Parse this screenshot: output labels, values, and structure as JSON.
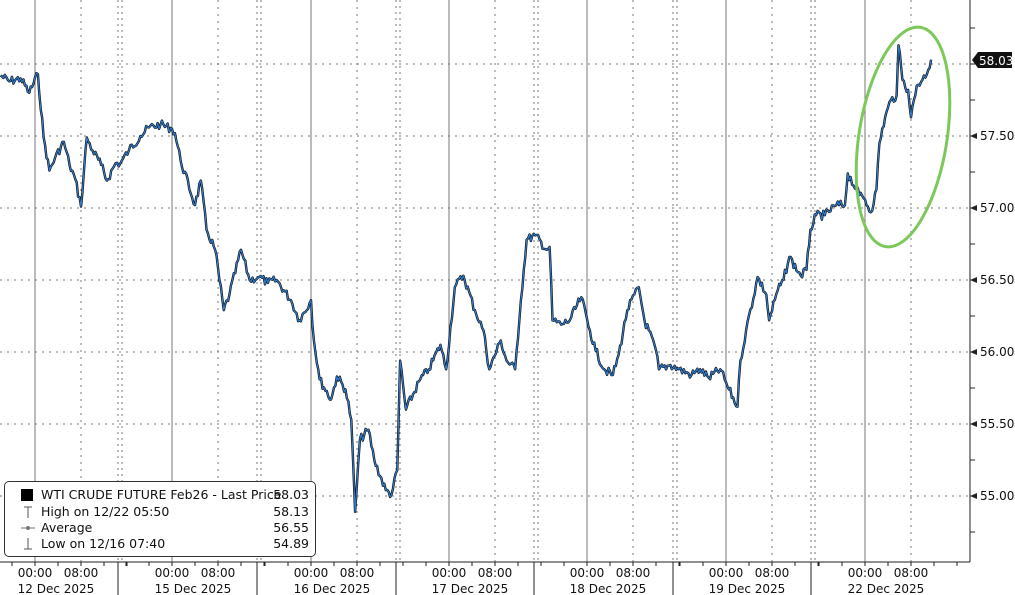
{
  "chart_data": {
    "type": "line",
    "title": "",
    "xlabel": "",
    "ylabel": "",
    "ylim": [
      54.6,
      58.45
    ],
    "y_ticks": [
      "57.50",
      "57.00",
      "56.50",
      "56.00",
      "55.50",
      "55.00"
    ],
    "y_tick_values": [
      57.5,
      57.0,
      56.5,
      56.0,
      55.5,
      55.0
    ],
    "y_gridlines": [
      58.0,
      57.5,
      57.0,
      56.5,
      56.0,
      55.5,
      55.0
    ],
    "grid": true,
    "last_price_tag": "58.03",
    "colors": {
      "price_line": "#111111",
      "price_fill": "#2f7fd6",
      "highlight_ellipse": "#7cc85a",
      "last_tag_bg": "#111111"
    },
    "sessions": [
      {
        "date": "12 Dec 2025",
        "time_labels": [
          "00:00",
          "08:00"
        ],
        "points_hour_price": [
          [
            -6,
            57.92
          ],
          [
            -4.5,
            57.88
          ],
          [
            -2.5,
            57.9
          ],
          [
            -1,
            57.8
          ],
          [
            0.5,
            57.93
          ],
          [
            1.5,
            57.49
          ],
          [
            2.5,
            57.26
          ],
          [
            3.5,
            57.35
          ],
          [
            5,
            57.46
          ],
          [
            6,
            57.3
          ],
          [
            7,
            57.2
          ],
          [
            8,
            57.01
          ],
          [
            9,
            57.49
          ],
          [
            10,
            57.4
          ],
          [
            11.5,
            57.3
          ],
          [
            12.5,
            57.19
          ],
          [
            14,
            57.31
          ]
        ]
      },
      {
        "date": "15 Dec 2025",
        "time_labels": [
          "00:00",
          "08:00"
        ],
        "points_hour_price": [
          [
            -9,
            57.31
          ],
          [
            -7.5,
            57.4
          ],
          [
            -5.5,
            57.5
          ],
          [
            -4,
            57.56
          ],
          [
            -2,
            57.58
          ],
          [
            0,
            57.55
          ],
          [
            0.5,
            57.52
          ],
          [
            1.5,
            57.33
          ],
          [
            4,
            57.02
          ],
          [
            5,
            57.19
          ],
          [
            6,
            56.85
          ],
          [
            7.5,
            56.71
          ],
          [
            9,
            56.29
          ],
          [
            10,
            56.4
          ],
          [
            12,
            56.71
          ],
          [
            13.5,
            56.5
          ],
          [
            15,
            56.52
          ]
        ]
      },
      {
        "date": "16 Dec 2025",
        "time_labels": [
          "00:00",
          "08:00"
        ],
        "points_hour_price": [
          [
            -9,
            56.52
          ],
          [
            -7.5,
            56.48
          ],
          [
            -6,
            56.5
          ],
          [
            -3.5,
            56.36
          ],
          [
            -2,
            56.22
          ],
          [
            0,
            56.36
          ],
          [
            0.5,
            56.08
          ],
          [
            1.5,
            55.81
          ],
          [
            3.5,
            55.67
          ],
          [
            4.5,
            55.83
          ],
          [
            6,
            55.74
          ],
          [
            7,
            55.53
          ],
          [
            7.67,
            54.89
          ],
          [
            8.5,
            55.39
          ],
          [
            10,
            55.46
          ],
          [
            11,
            55.25
          ],
          [
            13,
            55.04
          ],
          [
            14,
            55.01
          ],
          [
            15,
            55.18
          ]
        ]
      },
      {
        "date": "17 Dec 2025",
        "time_labels": [
          "00:00",
          "08:00"
        ],
        "points_hour_price": [
          [
            -8.5,
            55.94
          ],
          [
            -7.5,
            55.6
          ],
          [
            -5,
            55.81
          ],
          [
            -3.5,
            55.88
          ],
          [
            -1.5,
            56.05
          ],
          [
            -0.5,
            55.88
          ],
          [
            1,
            56.45
          ],
          [
            2.5,
            56.53
          ],
          [
            4.5,
            56.29
          ],
          [
            6,
            56.15
          ],
          [
            7,
            55.88
          ],
          [
            9,
            56.08
          ],
          [
            10,
            55.94
          ],
          [
            11.5,
            55.88
          ],
          [
            12.5,
            56.36
          ]
        ]
      },
      {
        "date": "18 Dec 2025",
        "time_labels": [
          "00:00",
          "08:00"
        ],
        "points_hour_price": [
          [
            -10.5,
            56.78
          ],
          [
            -9,
            56.81
          ],
          [
            -7,
            56.71
          ],
          [
            -6.5,
            56.73
          ],
          [
            -6,
            56.22
          ],
          [
            -4.5,
            56.19
          ],
          [
            -3,
            56.22
          ],
          [
            -1,
            56.38
          ],
          [
            0.5,
            56.15
          ],
          [
            1.5,
            56.01
          ],
          [
            3,
            55.88
          ],
          [
            4.5,
            55.84
          ],
          [
            5.5,
            55.98
          ],
          [
            7,
            56.29
          ],
          [
            9,
            56.45
          ],
          [
            10,
            56.22
          ],
          [
            12,
            56.01
          ],
          [
            12.5,
            55.88
          ],
          [
            14.5,
            55.91
          ],
          [
            16,
            55.88
          ]
        ]
      },
      {
        "date": "19 Dec 2025",
        "time_labels": [
          "00:00",
          "08:00"
        ],
        "points_hour_price": [
          [
            -6,
            55.84
          ],
          [
            -4.5,
            55.88
          ],
          [
            -3,
            55.82
          ],
          [
            -1,
            55.88
          ],
          [
            0.5,
            55.74
          ],
          [
            2,
            55.62
          ],
          [
            2.5,
            55.94
          ],
          [
            3.5,
            56.15
          ],
          [
            5.5,
            56.52
          ],
          [
            7,
            56.4
          ],
          [
            7.5,
            56.22
          ],
          [
            9,
            56.43
          ],
          [
            10,
            56.5
          ],
          [
            11,
            56.66
          ],
          [
            13,
            56.53
          ],
          [
            14,
            56.57
          ]
        ]
      },
      {
        "date": "22 Dec 2025",
        "time_labels": [
          "00:00",
          "08:00"
        ],
        "points_hour_price": [
          [
            -9.5,
            56.85
          ],
          [
            -8.5,
            56.95
          ],
          [
            -7,
            56.95
          ],
          [
            -5,
            57.02
          ],
          [
            -3.5,
            57.02
          ],
          [
            -3,
            57.24
          ],
          [
            -1.5,
            57.13
          ],
          [
            -1,
            57.09
          ],
          [
            0,
            57.06
          ],
          [
            1,
            56.97
          ],
          [
            2,
            57.13
          ],
          [
            2.5,
            57.45
          ],
          [
            3.5,
            57.63
          ],
          [
            4.5,
            57.75
          ],
          [
            5.5,
            57.78
          ],
          [
            5.83,
            58.13
          ],
          [
            6.5,
            57.89
          ],
          [
            7.5,
            57.82
          ],
          [
            8,
            57.63
          ],
          [
            9,
            57.85
          ],
          [
            10,
            57.89
          ],
          [
            11,
            57.96
          ],
          [
            11.5,
            58.03
          ]
        ]
      }
    ],
    "legend": {
      "placement": "bottom-left",
      "entries": [
        {
          "label": "WTI CRUDE FUTURE Feb26 - Last Price",
          "value": "58.03",
          "icon": "black-square"
        },
        {
          "label": "High on 12/22 05:50",
          "value": "58.13",
          "icon": "high-marker"
        },
        {
          "label": "Average",
          "value": "56.55",
          "icon": "average-marker"
        },
        {
          "label": "Low on 12/16 07:40",
          "value": "54.89",
          "icon": "low-marker"
        }
      ]
    },
    "annotations": [
      {
        "type": "ellipse",
        "around": "22 Dec 2025 rally"
      }
    ]
  }
}
